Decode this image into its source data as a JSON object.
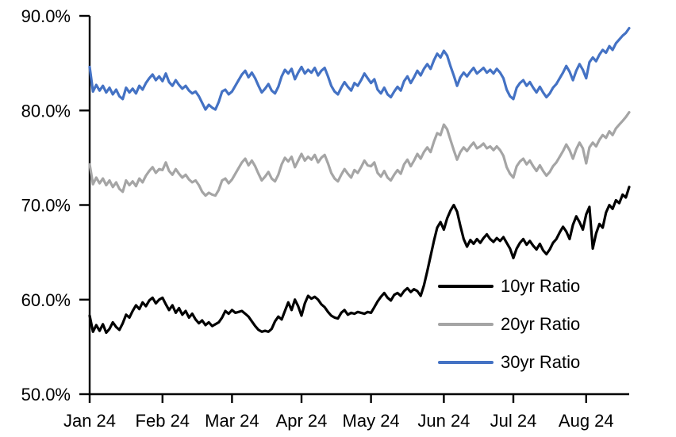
{
  "chart_data": {
    "type": "line",
    "title": "",
    "xlabel": "",
    "ylabel": "",
    "ylim": [
      50,
      90
    ],
    "grid": false,
    "legend_position": "inside-bottom-right",
    "n_points": 164,
    "x_ticks": [
      {
        "index": 0,
        "label": "Jan 24"
      },
      {
        "index": 22,
        "label": "Feb 24"
      },
      {
        "index": 43,
        "label": "Mar 24"
      },
      {
        "index": 64,
        "label": "Apr 24"
      },
      {
        "index": 85,
        "label": "May 24"
      },
      {
        "index": 107,
        "label": "Jun 24"
      },
      {
        "index": 128,
        "label": "Jul 24"
      },
      {
        "index": 150,
        "label": "Aug 24"
      }
    ],
    "y_ticks": [
      {
        "value": 50,
        "label": "50.0%"
      },
      {
        "value": 60,
        "label": "60.0%"
      },
      {
        "value": 70,
        "label": "70.0%"
      },
      {
        "value": 80,
        "label": "80.0%"
      },
      {
        "value": 90,
        "label": "90.0%"
      }
    ],
    "series": [
      {
        "name": "10yr Ratio",
        "color": "#000000",
        "values": [
          58.3,
          56.6,
          57.3,
          56.7,
          57.4,
          56.5,
          56.9,
          57.6,
          57.1,
          56.8,
          57.5,
          58.4,
          58.1,
          58.8,
          59.4,
          59.0,
          59.7,
          59.3,
          59.9,
          60.2,
          59.6,
          60.0,
          60.2,
          59.5,
          58.9,
          59.4,
          58.6,
          59.1,
          58.4,
          58.8,
          58.1,
          58.5,
          57.9,
          57.5,
          57.8,
          57.3,
          57.6,
          57.2,
          57.4,
          57.6,
          58.1,
          58.8,
          58.5,
          58.9,
          58.6,
          58.7,
          58.8,
          58.5,
          58.2,
          57.7,
          57.2,
          56.8,
          56.6,
          56.7,
          56.6,
          56.9,
          57.7,
          58.2,
          57.9,
          58.8,
          59.7,
          58.9,
          60.0,
          59.3,
          58.3,
          59.6,
          60.4,
          60.1,
          60.3,
          60.0,
          59.5,
          59.2,
          58.7,
          58.3,
          58.1,
          58.0,
          58.6,
          58.9,
          58.4,
          58.6,
          58.5,
          58.7,
          58.6,
          58.5,
          58.7,
          58.6,
          59.2,
          59.8,
          60.3,
          60.7,
          60.2,
          59.9,
          60.5,
          60.7,
          60.4,
          60.9,
          61.2,
          60.8,
          61.1,
          60.9,
          60.4,
          61.5,
          63.0,
          64.6,
          66.2,
          67.6,
          68.2,
          67.4,
          68.6,
          69.4,
          70.0,
          69.3,
          67.8,
          66.4,
          65.6,
          66.3,
          65.9,
          66.4,
          66.0,
          66.5,
          66.9,
          66.4,
          66.1,
          66.5,
          66.2,
          66.6,
          66.0,
          65.4,
          64.4,
          65.4,
          66.0,
          66.4,
          65.8,
          66.2,
          65.7,
          65.3,
          65.9,
          65.2,
          64.8,
          65.3,
          66.0,
          66.4,
          67.1,
          67.7,
          67.2,
          66.4,
          67.9,
          68.8,
          68.2,
          67.4,
          69.0,
          69.8,
          65.4,
          67.0,
          68.0,
          67.6,
          69.2,
          70.0,
          69.6,
          70.5,
          70.2,
          71.1,
          70.8,
          71.9
        ]
      },
      {
        "name": "20yr Ratio",
        "color": "#A5A5A5",
        "values": [
          74.3,
          72.2,
          72.9,
          72.3,
          72.8,
          72.1,
          72.6,
          71.9,
          72.4,
          71.7,
          71.4,
          72.6,
          72.1,
          72.5,
          72.0,
          72.8,
          72.4,
          73.1,
          73.6,
          74.0,
          73.4,
          73.8,
          73.7,
          74.5,
          73.6,
          73.2,
          73.8,
          73.3,
          72.9,
          73.2,
          72.7,
          72.4,
          72.6,
          72.1,
          71.4,
          71.0,
          71.3,
          71.1,
          71.0,
          71.6,
          72.6,
          72.8,
          72.3,
          72.7,
          73.3,
          73.9,
          74.5,
          74.9,
          74.2,
          74.7,
          74.1,
          73.3,
          72.6,
          73.0,
          73.5,
          72.8,
          72.5,
          73.2,
          74.3,
          75.0,
          74.6,
          75.1,
          74.0,
          74.7,
          75.4,
          74.7,
          75.1,
          74.8,
          75.3,
          74.5,
          75.0,
          75.3,
          74.4,
          73.4,
          72.8,
          72.5,
          73.2,
          73.8,
          73.3,
          72.9,
          73.7,
          73.4,
          74.0,
          74.7,
          74.2,
          74.1,
          74.5,
          73.4,
          73.0,
          73.6,
          72.9,
          72.6,
          73.2,
          73.7,
          73.3,
          74.3,
          74.8,
          74.1,
          74.7,
          75.4,
          74.9,
          75.6,
          76.1,
          75.6,
          76.7,
          77.6,
          77.4,
          78.5,
          78.0,
          76.9,
          75.8,
          74.8,
          75.6,
          76.1,
          75.7,
          76.2,
          76.6,
          76.0,
          76.2,
          76.5,
          76.0,
          76.2,
          75.8,
          76.2,
          75.8,
          75.2,
          74.0,
          73.3,
          72.9,
          74.1,
          74.6,
          74.9,
          74.3,
          74.7,
          74.1,
          73.6,
          74.2,
          73.6,
          73.1,
          73.5,
          74.1,
          74.5,
          75.1,
          75.7,
          76.4,
          75.8,
          74.9,
          75.9,
          76.6,
          76.0,
          74.4,
          76.1,
          76.6,
          76.2,
          76.9,
          77.4,
          77.1,
          77.8,
          77.4,
          78.1,
          78.5,
          78.9,
          79.3,
          79.8
        ]
      },
      {
        "name": "30yr Ratio",
        "color": "#4472C4",
        "values": [
          84.6,
          82.0,
          82.7,
          82.1,
          82.6,
          81.9,
          82.4,
          81.7,
          82.2,
          81.5,
          81.2,
          82.4,
          81.9,
          82.3,
          81.8,
          82.6,
          82.2,
          82.9,
          83.4,
          83.8,
          83.2,
          83.6,
          83.1,
          83.9,
          83.0,
          82.6,
          83.2,
          82.7,
          82.3,
          82.6,
          82.1,
          81.8,
          82.0,
          81.5,
          80.8,
          80.1,
          80.6,
          80.3,
          80.1,
          80.9,
          82.0,
          82.2,
          81.7,
          82.0,
          82.6,
          83.2,
          83.8,
          84.2,
          83.5,
          84.0,
          83.4,
          82.6,
          81.9,
          82.3,
          82.8,
          82.1,
          81.8,
          82.5,
          83.6,
          84.3,
          83.9,
          84.4,
          83.3,
          84.0,
          84.6,
          83.9,
          84.3,
          84.0,
          84.5,
          83.7,
          84.2,
          84.5,
          83.6,
          82.6,
          82.0,
          81.7,
          82.4,
          83.0,
          82.5,
          82.1,
          82.9,
          82.6,
          83.2,
          83.9,
          83.4,
          82.9,
          83.3,
          82.2,
          81.8,
          82.4,
          81.7,
          81.4,
          82.0,
          82.5,
          82.1,
          83.1,
          83.6,
          82.9,
          83.5,
          84.2,
          83.7,
          84.4,
          84.9,
          84.4,
          85.3,
          86.0,
          85.6,
          86.3,
          85.8,
          84.7,
          83.7,
          82.6,
          83.5,
          84.0,
          83.6,
          84.1,
          84.5,
          83.9,
          84.2,
          84.5,
          84.0,
          84.3,
          83.9,
          84.4,
          84.0,
          83.4,
          82.2,
          81.5,
          81.2,
          82.4,
          82.9,
          83.2,
          82.6,
          83.0,
          82.4,
          81.9,
          82.5,
          81.9,
          81.4,
          81.8,
          82.4,
          82.8,
          83.4,
          84.0,
          84.7,
          84.1,
          83.2,
          84.2,
          84.9,
          84.3,
          83.4,
          85.1,
          85.6,
          85.2,
          85.9,
          86.4,
          86.1,
          86.8,
          86.4,
          87.1,
          87.5,
          87.9,
          88.2,
          88.7
        ]
      }
    ]
  }
}
